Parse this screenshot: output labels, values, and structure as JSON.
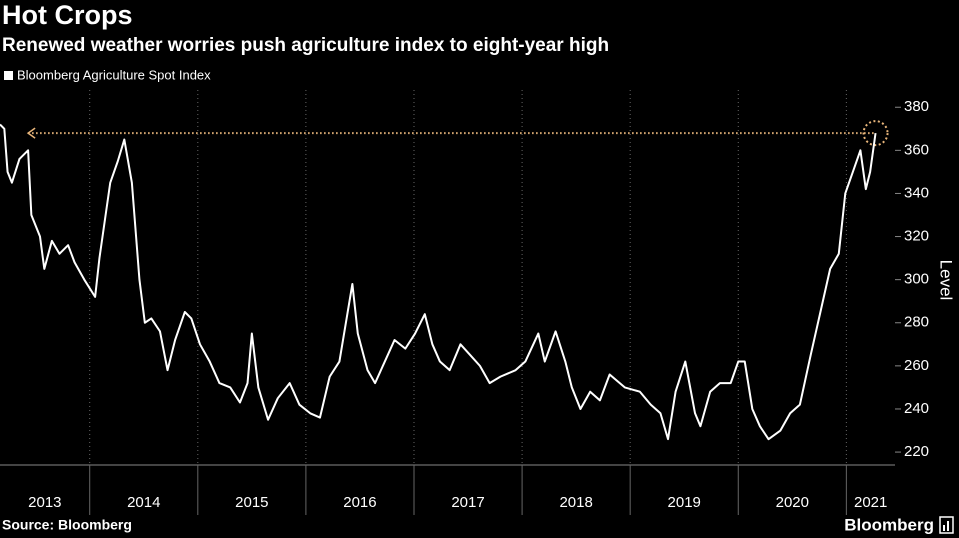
{
  "chart_data": {
    "type": "line",
    "title": "Hot Crops",
    "subtitle": "Renewed weather worries push agriculture index to eight-year high",
    "y_label": "Level",
    "source": "Source: Bloomberg",
    "branding": "Bloomberg",
    "legend": "top-left",
    "grid": true,
    "xlim": [
      2013.17,
      2021.45
    ],
    "ylim": [
      214,
      388
    ],
    "yticks": [
      220,
      240,
      260,
      280,
      300,
      320,
      340,
      360,
      380
    ],
    "xticks": [
      {
        "value": 2013,
        "label": "2013"
      },
      {
        "value": 2014,
        "label": "2014"
      },
      {
        "value": 2015,
        "label": "2015"
      },
      {
        "value": 2016,
        "label": "2016"
      },
      {
        "value": 2017,
        "label": "2017"
      },
      {
        "value": 2018,
        "label": "2018"
      },
      {
        "value": 2019,
        "label": "2019"
      },
      {
        "value": 2020,
        "label": "2020"
      },
      {
        "value": 2021,
        "label": "2021"
      }
    ],
    "reference": {
      "value": 368,
      "from": 2013.43,
      "to": 2021.27,
      "color": "#e8b57a"
    },
    "series": [
      {
        "name": "Bloomberg Agriculture Spot Index",
        "color": "#ffffff",
        "x": [
          2013.17,
          2013.21,
          2013.24,
          2013.28,
          2013.35,
          2013.43,
          2013.46,
          2013.54,
          2013.58,
          2013.65,
          2013.72,
          2013.8,
          2013.86,
          2013.95,
          2014.05,
          2014.09,
          2014.19,
          2014.26,
          2014.32,
          2014.39,
          2014.46,
          2014.51,
          2014.57,
          2014.65,
          2014.72,
          2014.79,
          2014.88,
          2014.94,
          2015.02,
          2015.11,
          2015.2,
          2015.3,
          2015.39,
          2015.46,
          2015.5,
          2015.56,
          2015.65,
          2015.74,
          2015.85,
          2015.94,
          2016.04,
          2016.13,
          2016.22,
          2016.31,
          2016.43,
          2016.48,
          2016.57,
          2016.64,
          2016.73,
          2016.82,
          2016.92,
          2017.01,
          2017.1,
          2017.17,
          2017.24,
          2017.33,
          2017.43,
          2017.52,
          2017.61,
          2017.7,
          2017.8,
          2017.94,
          2018.03,
          2018.15,
          2018.21,
          2018.31,
          2018.4,
          2018.46,
          2018.54,
          2018.63,
          2018.72,
          2018.81,
          2018.95,
          2019.09,
          2019.19,
          2019.28,
          2019.35,
          2019.42,
          2019.51,
          2019.6,
          2019.65,
          2019.74,
          2019.83,
          2019.93,
          2020.0,
          2020.06,
          2020.13,
          2020.2,
          2020.28,
          2020.39,
          2020.48,
          2020.57,
          2020.67,
          2020.76,
          2020.85,
          2020.93,
          2020.99,
          2021.06,
          2021.13,
          2021.18,
          2021.22,
          2021.27
        ],
        "values": [
          372,
          370,
          350,
          345,
          356,
          360,
          330,
          320,
          305,
          318,
          312,
          316,
          308,
          300,
          292,
          310,
          345,
          355,
          365,
          345,
          300,
          280,
          282,
          276,
          258,
          272,
          285,
          282,
          270,
          262,
          252,
          250,
          243,
          252,
          275,
          250,
          235,
          245,
          252,
          242,
          238,
          236,
          255,
          262,
          298,
          275,
          258,
          252,
          262,
          272,
          268,
          275,
          284,
          270,
          262,
          258,
          270,
          265,
          260,
          252,
          255,
          258,
          262,
          275,
          262,
          276,
          262,
          250,
          240,
          248,
          244,
          256,
          250,
          248,
          242,
          238,
          226,
          248,
          262,
          238,
          232,
          248,
          252,
          252,
          262,
          262,
          240,
          232,
          226,
          230,
          238,
          242,
          265,
          285,
          305,
          312,
          340,
          350,
          360,
          342,
          350,
          368
        ]
      }
    ]
  }
}
